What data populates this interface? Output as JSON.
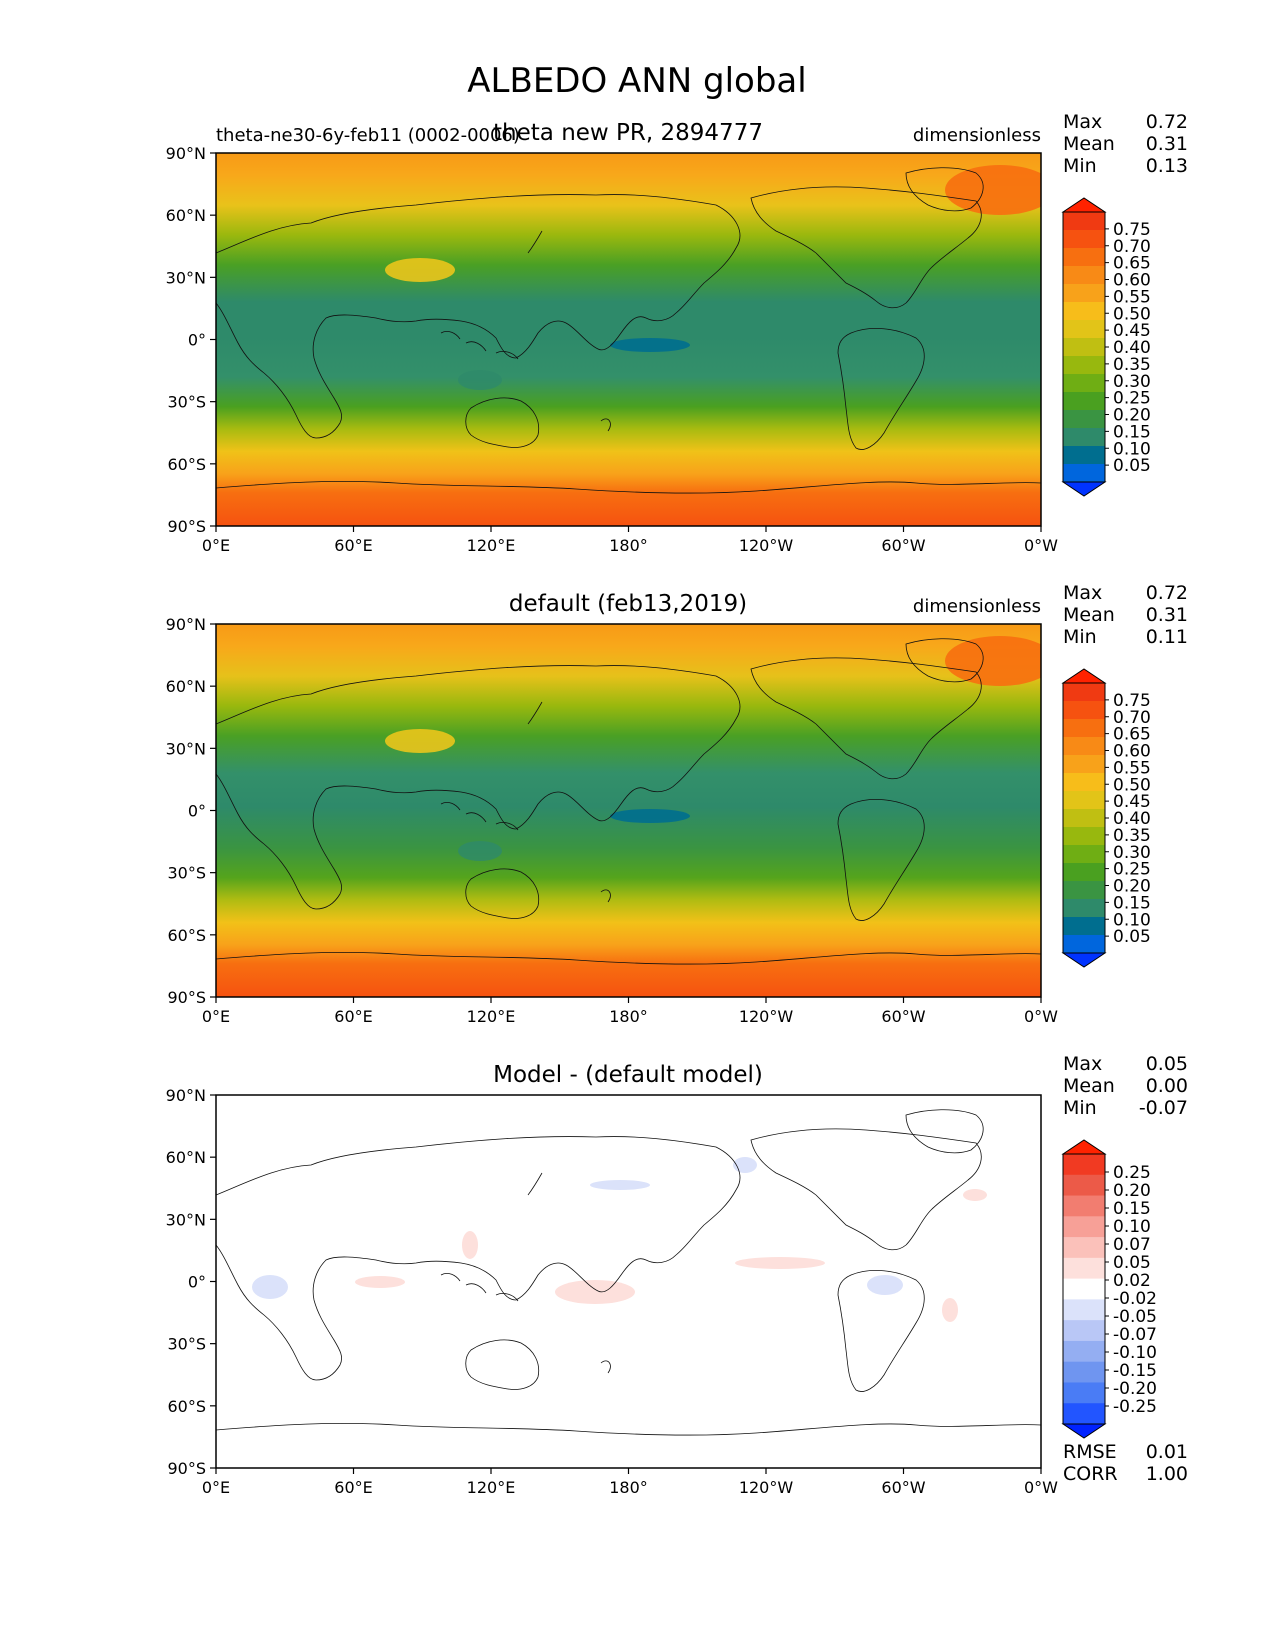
{
  "figure_title": "ALBEDO ANN global",
  "colors": {
    "seq_palette": [
      "#0033ff",
      "#0066dd",
      "#006e8f",
      "#2e8a6a",
      "#3a9442",
      "#4aa020",
      "#6fae14",
      "#98b80e",
      "#c0bf12",
      "#e2c418",
      "#f7bd1a",
      "#f8a21a",
      "#f88a16",
      "#f76f10",
      "#f65210",
      "#f03a12",
      "#ff2200"
    ],
    "diff_palette": [
      "#0022ff",
      "#2255ff",
      "#4a7cf5",
      "#6f95f0",
      "#94aef2",
      "#b9c7f6",
      "#dbe2fa",
      "#ffffff",
      "#fde0dc",
      "#fbc1ba",
      "#f7a097",
      "#f27d70",
      "#ec5a48",
      "#f13a22",
      "#ff2200"
    ],
    "land_outline": "#111111"
  },
  "chart_data": [
    {
      "type": "contour-map",
      "panel_id": "test",
      "title": "theta new PR, 2894777",
      "left_subtitle": "theta-ne30-6y-feb11 (0002-0006)",
      "units": "dimensionless",
      "x_tick_labels": [
        "0°E",
        "60°E",
        "120°E",
        "180°",
        "120°W",
        "60°W",
        "0°W"
      ],
      "y_tick_labels": [
        "90°N",
        "60°N",
        "30°N",
        "0°",
        "30°S",
        "60°S",
        "90°S"
      ],
      "xlim": [
        0,
        360
      ],
      "ylim": [
        -90,
        90
      ],
      "colorbar_levels": [
        "0.05",
        "0.10",
        "0.15",
        "0.20",
        "0.25",
        "0.30",
        "0.35",
        "0.40",
        "0.45",
        "0.50",
        "0.55",
        "0.60",
        "0.65",
        "0.70",
        "0.75"
      ],
      "stats": [
        {
          "label": "Max",
          "value": "0.72"
        },
        {
          "label": "Mean",
          "value": "0.31"
        },
        {
          "label": "Min",
          "value": "0.13"
        }
      ]
    },
    {
      "type": "contour-map",
      "panel_id": "reference",
      "title": "default (feb13,2019)",
      "units": "dimensionless",
      "x_tick_labels": [
        "0°E",
        "60°E",
        "120°E",
        "180°",
        "120°W",
        "60°W",
        "0°W"
      ],
      "y_tick_labels": [
        "90°N",
        "60°N",
        "30°N",
        "0°",
        "30°S",
        "60°S",
        "90°S"
      ],
      "xlim": [
        0,
        360
      ],
      "ylim": [
        -90,
        90
      ],
      "colorbar_levels": [
        "0.05",
        "0.10",
        "0.15",
        "0.20",
        "0.25",
        "0.30",
        "0.35",
        "0.40",
        "0.45",
        "0.50",
        "0.55",
        "0.60",
        "0.65",
        "0.70",
        "0.75"
      ],
      "stats": [
        {
          "label": "Max",
          "value": "0.72"
        },
        {
          "label": "Mean",
          "value": "0.31"
        },
        {
          "label": "Min",
          "value": "0.11"
        }
      ]
    },
    {
      "type": "contour-map",
      "panel_id": "difference",
      "title": "Model - (default model)",
      "x_tick_labels": [
        "0°E",
        "60°E",
        "120°E",
        "180°",
        "120°W",
        "60°W",
        "0°W"
      ],
      "y_tick_labels": [
        "90°N",
        "60°N",
        "30°N",
        "0°",
        "30°S",
        "60°S",
        "90°S"
      ],
      "xlim": [
        0,
        360
      ],
      "ylim": [
        -90,
        90
      ],
      "colorbar_levels": [
        "0.25",
        "0.20",
        "0.15",
        "0.10",
        "0.07",
        "0.05",
        "0.02",
        "-0.02",
        "-0.05",
        "-0.07",
        "-0.10",
        "-0.15",
        "-0.20",
        "-0.25"
      ],
      "stats": [
        {
          "label": "Max",
          "value": "0.05"
        },
        {
          "label": "Mean",
          "value": "0.00"
        },
        {
          "label": "Min",
          "value": "-0.07"
        }
      ],
      "metrics": [
        {
          "label": "RMSE",
          "value": "0.01"
        },
        {
          "label": "CORR",
          "value": "1.00"
        }
      ]
    }
  ]
}
